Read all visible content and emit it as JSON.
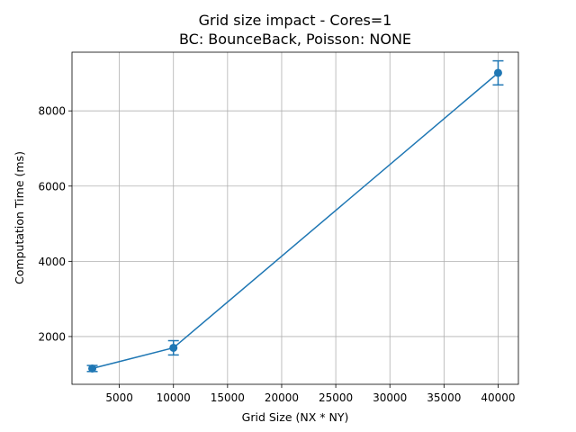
{
  "chart_data": {
    "type": "line",
    "title_lines": [
      "Grid size impact - Cores=1",
      "BC: BounceBack, Poisson: NONE"
    ],
    "xlabel": "Grid Size (NX * NY)",
    "ylabel": "Computation Time (ms)",
    "xlim": [
      625,
      41875
    ],
    "ylim": [
      730,
      9560
    ],
    "xticks": [
      5000,
      10000,
      15000,
      20000,
      25000,
      30000,
      35000,
      40000
    ],
    "yticks": [
      2000,
      4000,
      6000,
      8000
    ],
    "grid": true,
    "series": [
      {
        "color": "#1f77b4",
        "marker": "circle",
        "errorbars": true,
        "points": [
          {
            "x": 2500,
            "y": 1150,
            "yerr": 80
          },
          {
            "x": 10000,
            "y": 1700,
            "yerr": 190
          },
          {
            "x": 40000,
            "y": 9010,
            "yerr": 320
          }
        ]
      }
    ]
  }
}
